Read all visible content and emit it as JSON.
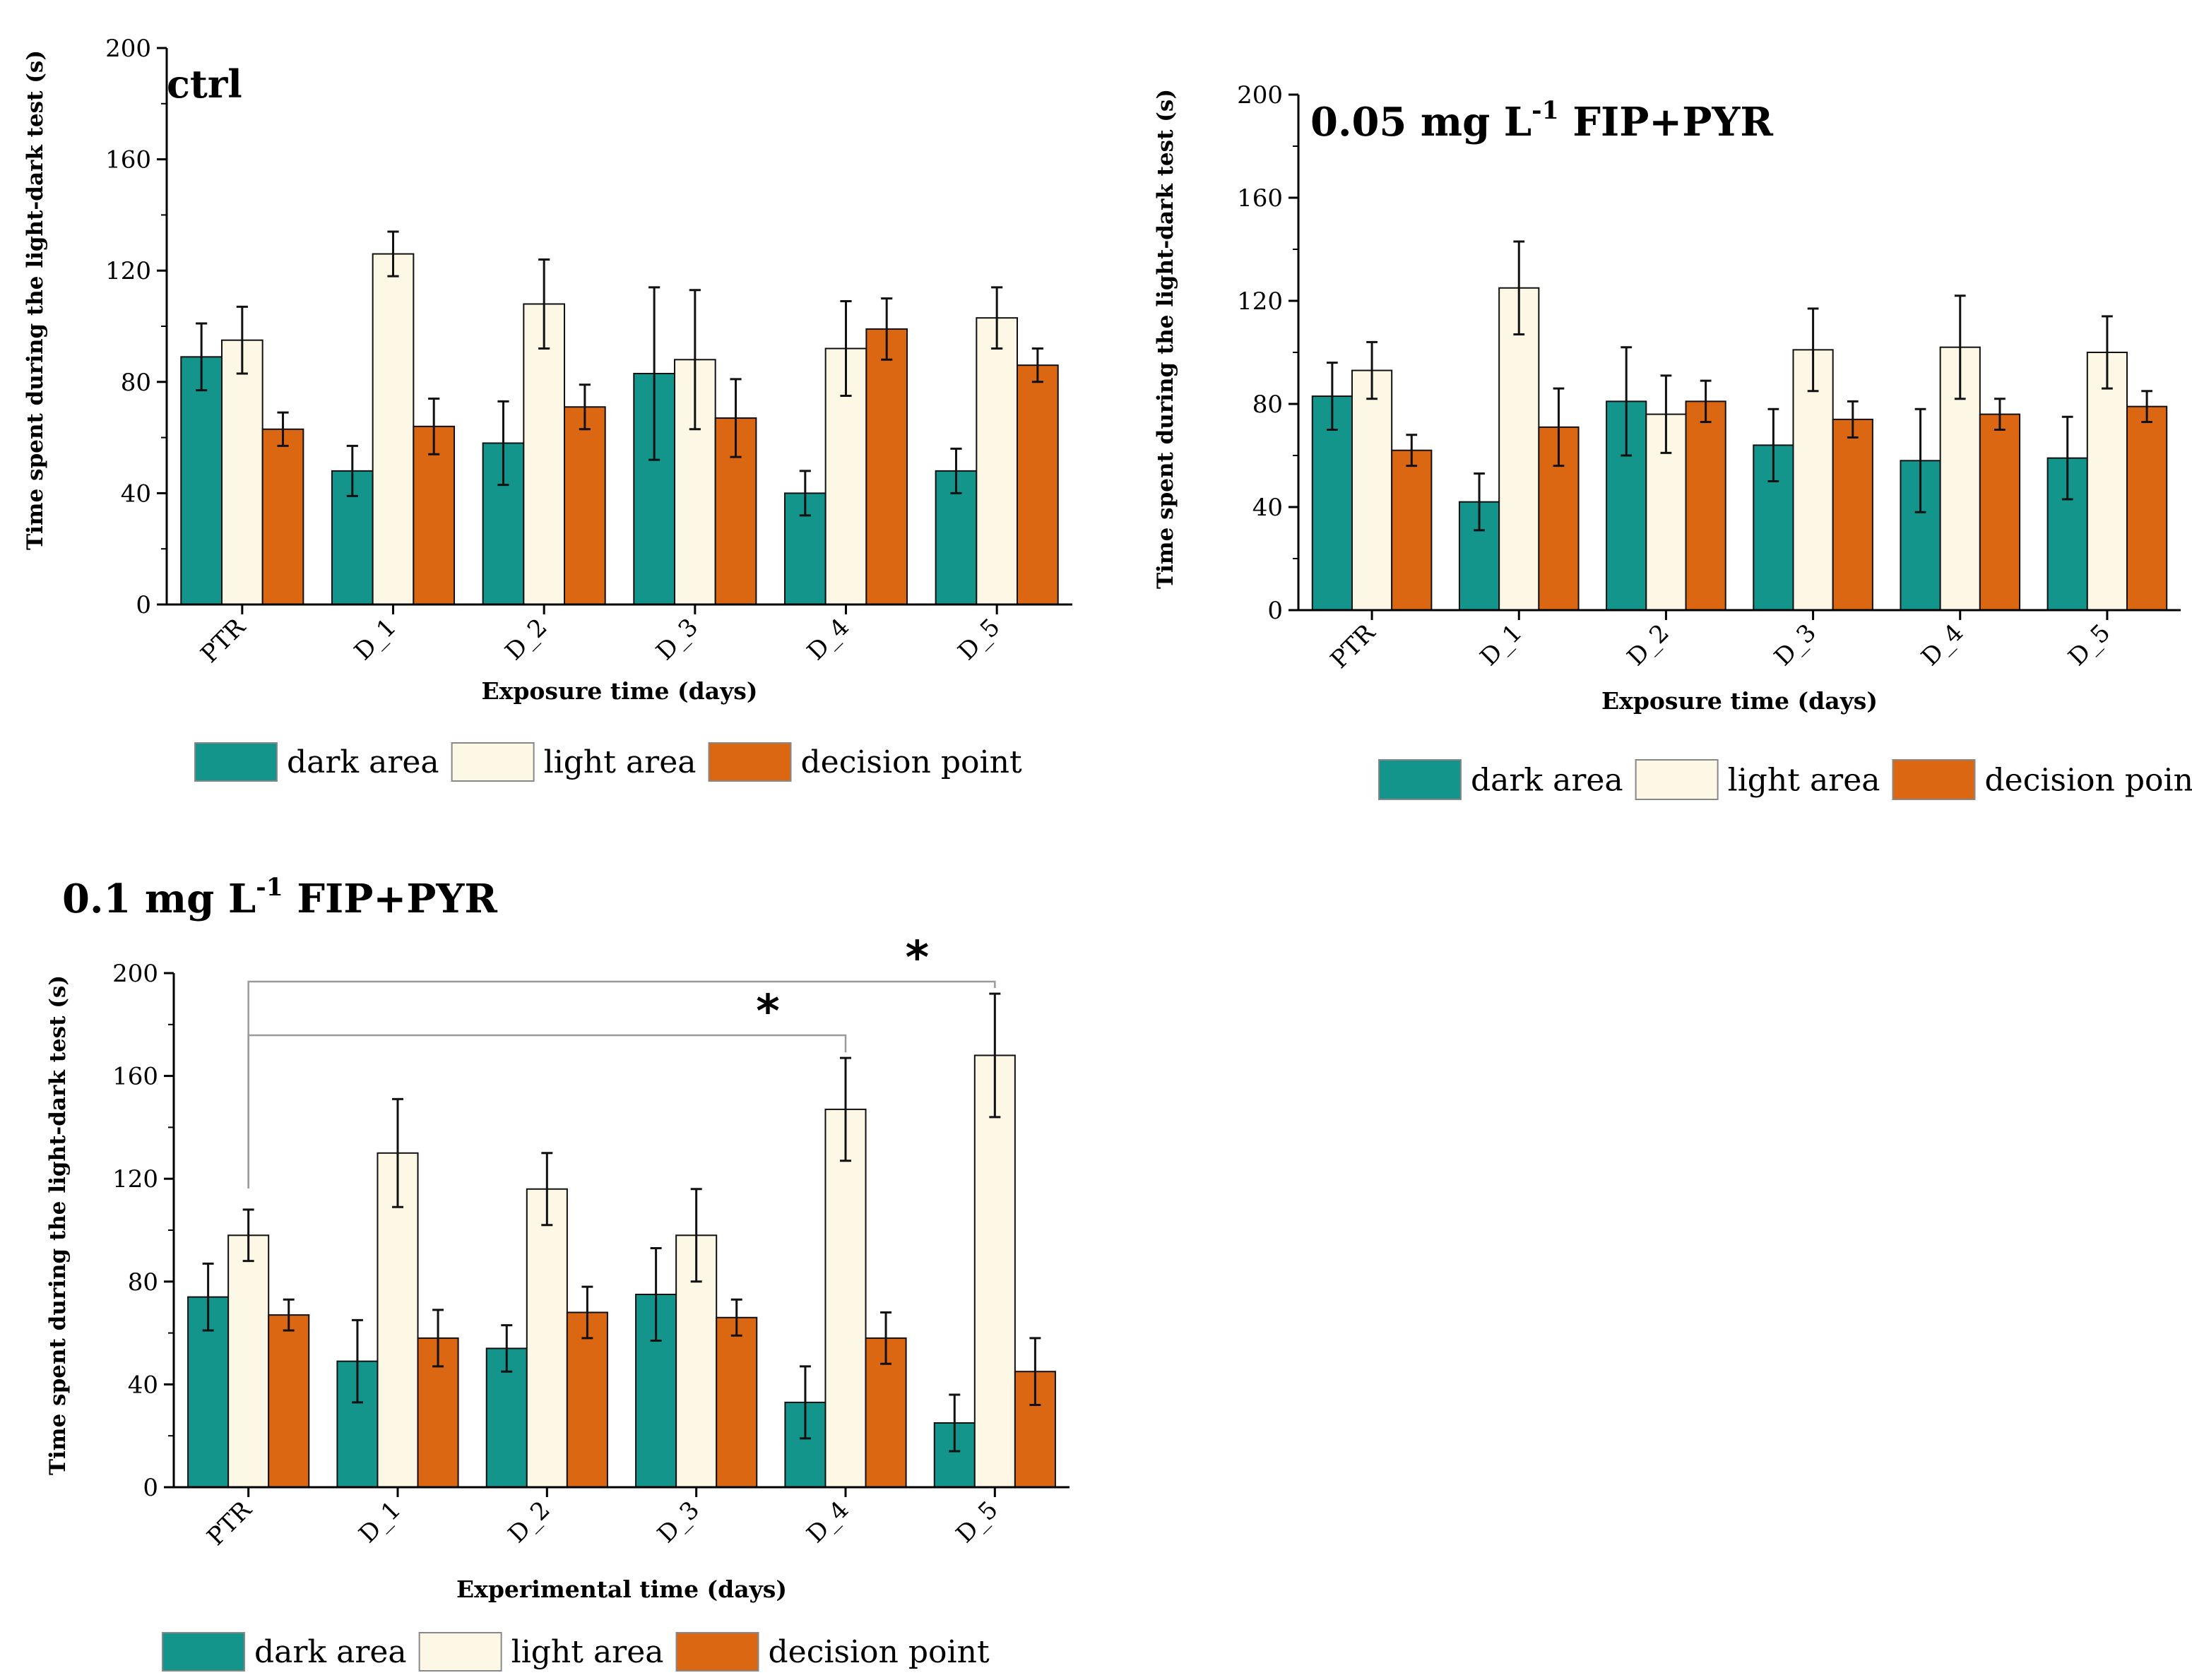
{
  "colors": {
    "dark_area": "#13958b",
    "light_area": "#fdf7e6",
    "decision_point": "#db6713",
    "bar_stroke": "#111111"
  },
  "legend": [
    "dark area",
    "light area",
    "decision point"
  ],
  "chart_data": [
    {
      "id": "ctrl",
      "type": "bar",
      "title": "ctrl",
      "title_sup": "",
      "title_rest": "",
      "xlabel": "Exposure time (days)",
      "ylabel": "Time spent during the light-dark test (s)",
      "ylim": [
        0,
        200
      ],
      "yticks": [
        "0",
        "40",
        "80",
        "120",
        "160",
        "200"
      ],
      "categories": [
        "PTR",
        "D_1",
        "D_2",
        "D_3",
        "D_4",
        "D_5"
      ],
      "series": [
        {
          "name": "dark area",
          "values": [
            89,
            48,
            58,
            83,
            40,
            48
          ],
          "errors": [
            12,
            9,
            15,
            31,
            8,
            8
          ]
        },
        {
          "name": "light area",
          "values": [
            95,
            126,
            108,
            88,
            92,
            103
          ],
          "errors": [
            12,
            8,
            16,
            25,
            17,
            11
          ]
        },
        {
          "name": "decision point",
          "values": [
            63,
            64,
            71,
            67,
            99,
            86
          ],
          "errors": [
            6,
            10,
            8,
            14,
            11,
            6
          ]
        }
      ],
      "annotations": []
    },
    {
      "id": "c005",
      "type": "bar",
      "title": "0.05 mg L",
      "title_sup": "-1",
      "title_rest": " FIP+PYR",
      "xlabel": "Exposure time (days)",
      "ylabel": "Time spent during the light-dark test (s)",
      "ylim": [
        0,
        200
      ],
      "yticks": [
        "0",
        "40",
        "80",
        "120",
        "160",
        "200"
      ],
      "categories": [
        "PTR",
        "D_1",
        "D_2",
        "D_3",
        "D_4",
        "D_5"
      ],
      "series": [
        {
          "name": "dark area",
          "values": [
            83,
            42,
            81,
            64,
            58,
            59
          ],
          "errors": [
            13,
            11,
            21,
            14,
            20,
            16
          ]
        },
        {
          "name": "light area",
          "values": [
            93,
            125,
            76,
            101,
            102,
            100
          ],
          "errors": [
            11,
            18,
            15,
            16,
            20,
            14
          ]
        },
        {
          "name": "decision point",
          "values": [
            62,
            71,
            81,
            74,
            76,
            79
          ],
          "errors": [
            6,
            15,
            8,
            7,
            6,
            6
          ]
        }
      ],
      "annotations": []
    },
    {
      "id": "c01",
      "type": "bar",
      "title": "0.1 mg L",
      "title_sup": "-1",
      "title_rest": " FIP+PYR",
      "xlabel": "Experimental time (days)",
      "ylabel": "Time spent during the light-dark test (s)",
      "ylim": [
        0,
        200
      ],
      "yticks": [
        "0",
        "40",
        "80",
        "120",
        "160",
        "200"
      ],
      "categories": [
        "PTR",
        "D_1",
        "D_2",
        "D_3",
        "D_4",
        "D_5"
      ],
      "series": [
        {
          "name": "dark area",
          "values": [
            74,
            49,
            54,
            75,
            33,
            25
          ],
          "errors": [
            13,
            16,
            9,
            18,
            14,
            11
          ]
        },
        {
          "name": "light area",
          "values": [
            98,
            130,
            116,
            98,
            147,
            168
          ],
          "errors": [
            10,
            21,
            14,
            18,
            20,
            24
          ]
        },
        {
          "name": "decision point",
          "values": [
            67,
            58,
            68,
            66,
            58,
            45
          ],
          "errors": [
            6,
            11,
            10,
            7,
            10,
            13
          ]
        }
      ],
      "annotations": [
        {
          "from": "PTR",
          "to": "D_4",
          "label": "*"
        },
        {
          "from": "PTR",
          "to": "D_5",
          "label": "*"
        }
      ]
    }
  ]
}
